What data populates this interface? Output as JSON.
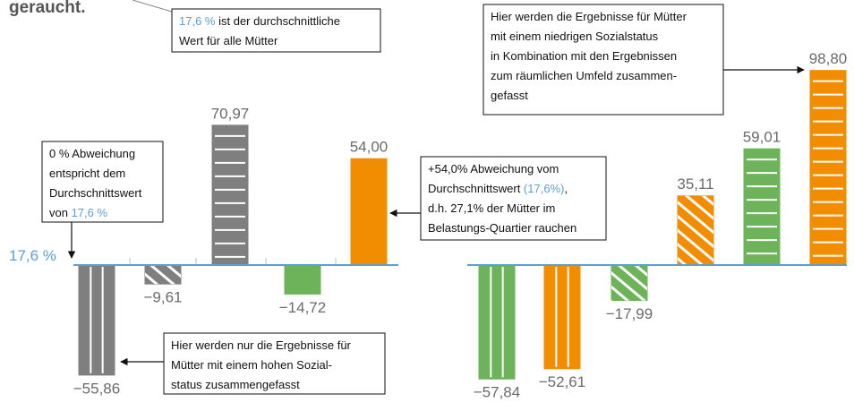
{
  "heading": "geraucht.",
  "baseline_label": "17,6 %",
  "chart_data": [
    {
      "type": "bar",
      "values": [
        -55.86,
        -9.61,
        70.97,
        -14.72,
        54.0
      ],
      "value_labels": [
        "−55,86",
        "−9,61",
        "70,97",
        "−14,72",
        "54,00"
      ],
      "colors": [
        "#7f7f7f",
        "#7f7f7f",
        "#7f7f7f",
        "#6db35a",
        "#f28c00"
      ],
      "patterns": [
        "vertical",
        "diagonal",
        "horizontal",
        "none",
        "none"
      ]
    },
    {
      "type": "bar",
      "values": [
        -57.84,
        -52.61,
        -17.99,
        35.11,
        59.01,
        98.8
      ],
      "value_labels": [
        "−57,84",
        "−52,61",
        "−17,99",
        "35,11",
        "59,01",
        "98,80"
      ],
      "colors": [
        "#6db35a",
        "#f28c00",
        "#6db35a",
        "#f28c00",
        "#6db35a",
        "#f28c00"
      ],
      "patterns": [
        "vertical",
        "vertical",
        "diagonal",
        "diagonal",
        "horizontal",
        "horizontal"
      ]
    }
  ],
  "annotations": [
    {
      "lines": [
        [
          {
            "t": "17,6 %",
            "hl": true
          },
          {
            "t": " ist der durchschnittliche"
          }
        ],
        [
          {
            "t": "Wert für alle Mütter"
          }
        ]
      ]
    },
    {
      "lines": [
        [
          {
            "t": "0 % Abweichung"
          }
        ],
        [
          {
            "t": "entspricht dem"
          }
        ],
        [
          {
            "t": "Durchschnittswert"
          }
        ],
        [
          {
            "t": "von "
          },
          {
            "t": "17,6 %",
            "hl": true
          }
        ]
      ]
    },
    {
      "lines": [
        [
          {
            "t": "+54,0% Abweichung vom"
          }
        ],
        [
          {
            "t": "Durchschnittswert "
          },
          {
            "t": "(17,6%)",
            "hl": true
          },
          {
            "t": ","
          }
        ],
        [
          {
            "t": "d.h. 27,1% der Mütter im"
          }
        ],
        [
          {
            "t": "Belastungs-Quartier rauchen"
          }
        ]
      ]
    },
    {
      "lines": [
        [
          {
            "t": "Hier werden nur die Ergebnisse für"
          }
        ],
        [
          {
            "t": "Mütter mit einem hohen Sozial-"
          }
        ],
        [
          {
            "t": "status zusammengefasst"
          }
        ]
      ]
    },
    {
      "lines": [
        [
          {
            "t": "Hier werden die Ergebnisse für Mütter"
          }
        ],
        [
          {
            "t": "mit einem niedrigen Sozialstatus"
          }
        ],
        [
          {
            "t": "in Kombination mit den Ergebnissen"
          }
        ],
        [
          {
            "t": "zum räumlichen Umfeld zusammen-"
          }
        ],
        [
          {
            "t": "gefasst"
          }
        ]
      ]
    }
  ]
}
